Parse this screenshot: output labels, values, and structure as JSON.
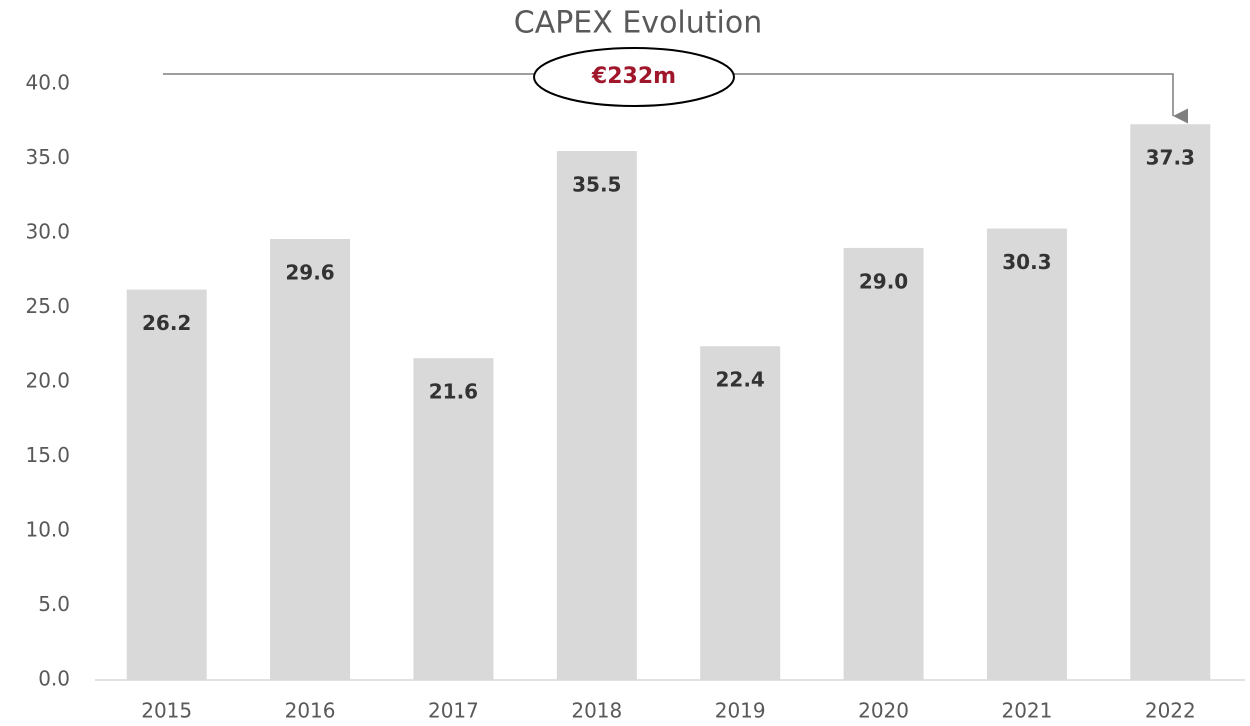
{
  "chart_data": {
    "type": "bar",
    "title": "CAPEX Evolution",
    "annotation": "€232m",
    "categories": [
      "2015",
      "2016",
      "2017",
      "2018",
      "2019",
      "2020",
      "2021",
      "2022"
    ],
    "values": [
      26.2,
      29.6,
      21.6,
      35.5,
      22.4,
      29.0,
      30.3,
      37.3
    ],
    "value_labels": [
      "26.2",
      "29.6",
      "21.6",
      "35.5",
      "22.4",
      "29.0",
      "30.3",
      "37.3"
    ],
    "color": "#d9d9d9",
    "ylim": [
      0,
      40
    ],
    "yticks": [
      {
        "value": 0,
        "label": "0.0"
      },
      {
        "value": 5,
        "label": "5.0"
      },
      {
        "value": 10,
        "label": "10.0"
      },
      {
        "value": 15,
        "label": "15.0"
      },
      {
        "value": 20,
        "label": "20.0"
      },
      {
        "value": 25,
        "label": "25.0"
      },
      {
        "value": 30,
        "label": "30.0"
      },
      {
        "value": 35,
        "label": "35.0"
      },
      {
        "value": 40,
        "label": "40.0"
      }
    ],
    "grid": false
  }
}
